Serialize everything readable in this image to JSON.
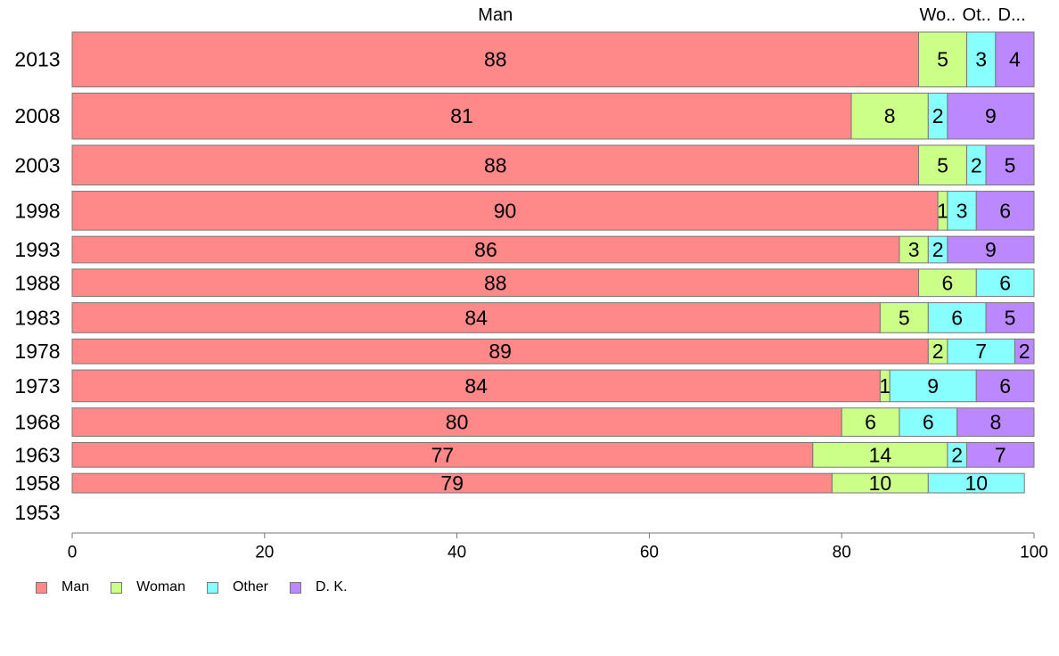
{
  "colors": {
    "Man": "#ff8888",
    "Woman": "#ccff88",
    "Other": "#88ffff",
    "D. K.": "#bb88ff"
  },
  "chart_data": {
    "type": "bar",
    "orientation": "horizontal",
    "stacked": true,
    "title": "",
    "xlabel": "",
    "ylabel": "",
    "xlim": [
      0,
      100
    ],
    "x_ticks": [
      "0",
      "20",
      "40",
      "60",
      "80",
      "100"
    ],
    "x_tick_values": [
      0,
      20,
      40,
      60,
      80,
      100
    ],
    "top_labels": [
      "Man",
      "Wo..",
      "Ot..",
      "D..."
    ],
    "categories": [
      "2013",
      "2008",
      "2003",
      "1998",
      "1993",
      "1988",
      "1983",
      "1978",
      "1973",
      "1968",
      "1963",
      "1958",
      "1953"
    ],
    "series": [
      {
        "name": "Man",
        "values": [
          88,
          81,
          88,
          90,
          86,
          88,
          84,
          89,
          84,
          80,
          77,
          79,
          0
        ]
      },
      {
        "name": "Woman",
        "values": [
          5,
          8,
          5,
          1,
          3,
          6,
          5,
          2,
          1,
          6,
          14,
          10,
          0
        ]
      },
      {
        "name": "Other",
        "values": [
          3,
          2,
          2,
          3,
          2,
          6,
          6,
          7,
          9,
          6,
          2,
          10,
          0
        ]
      },
      {
        "name": "D. K.",
        "values": [
          4,
          9,
          5,
          6,
          9,
          0,
          5,
          2,
          6,
          8,
          7,
          0,
          0
        ]
      }
    ],
    "category_weights": [
      62,
      52,
      45,
      44,
      30,
      31,
      34,
      28,
      36,
      32,
      28,
      22,
      0
    ],
    "legend": [
      "Man",
      "Woman",
      "Other",
      "D. K."
    ],
    "legend_position": "bottom-left",
    "grid": false
  }
}
